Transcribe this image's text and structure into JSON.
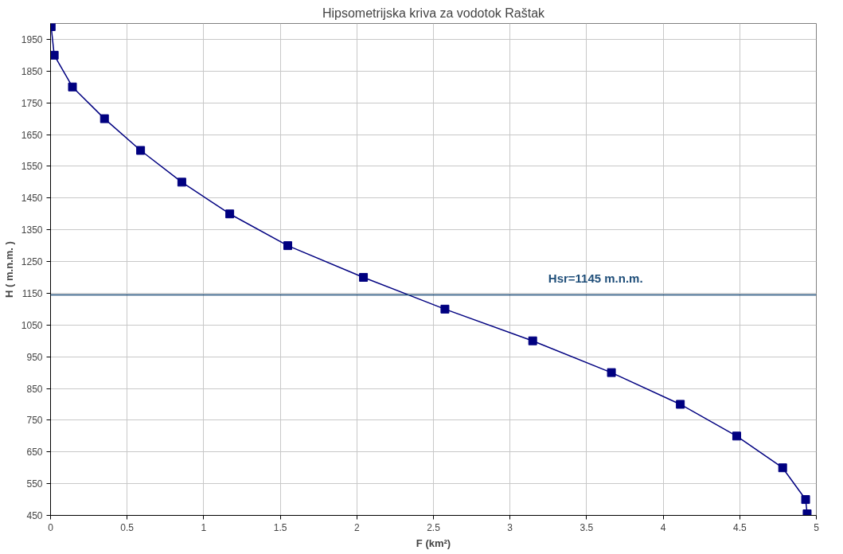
{
  "chart_data": {
    "type": "line",
    "title": "Hipsometrijska kriva za vodotok Raštak",
    "xlabel": "F (km²)",
    "ylabel": "H ( m.n.m. )",
    "x": [
      0.004,
      0.024,
      0.143,
      0.352,
      0.588,
      0.857,
      1.17,
      1.549,
      2.043,
      2.575,
      3.148,
      3.662,
      4.112,
      4.48,
      4.78,
      4.93,
      4.94
    ],
    "series": [
      {
        "color": "#000080",
        "values": [
          1990,
          1900,
          1800,
          1700,
          1600,
          1500,
          1400,
          1300,
          1200,
          1100,
          1000,
          900,
          800,
          700,
          600,
          500,
          455
        ]
      }
    ],
    "xlim": [
      0,
      5
    ],
    "xticks": [
      0,
      0.5,
      1,
      1.5,
      2,
      2.5,
      3,
      3.5,
      4,
      4.5,
      5
    ],
    "ylim": [
      450,
      2000
    ],
    "yticks": [
      450,
      550,
      650,
      750,
      850,
      950,
      1050,
      1150,
      1250,
      1350,
      1450,
      1550,
      1650,
      1750,
      1850,
      1950
    ],
    "ref_lines": [
      {
        "axis": "y",
        "value": 1145,
        "label": "Hsr=1145 m.n.m.",
        "color": "#1f4e79"
      }
    ],
    "grid": true,
    "marker": "square",
    "line_style": "solid"
  }
}
